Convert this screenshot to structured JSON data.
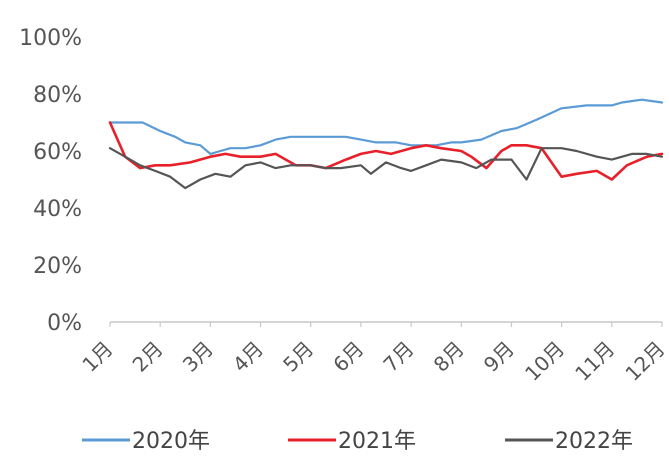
{
  "chart_data": {
    "type": "line",
    "title": "",
    "xlabel": "",
    "ylabel": "",
    "ylim": [
      0,
      100
    ],
    "y_ticks": [
      "0%",
      "20%",
      "40%",
      "60%",
      "80%",
      "100%"
    ],
    "x_ticks": [
      "1月",
      "2月",
      "3月",
      "4月",
      "5月",
      "6月",
      "7月",
      "8月",
      "9月",
      "10月",
      "11月",
      "12月"
    ],
    "x_range": [
      0,
      11
    ],
    "grid": false,
    "legend_position": "bottom",
    "series": [
      {
        "name": "2020年",
        "color": "#5b9bd5",
        "x": [
          0,
          0.45,
          0.65,
          1,
          1.3,
          1.5,
          1.8,
          2.0,
          2.2,
          2.4,
          2.7,
          3.0,
          3.3,
          3.6,
          4.0,
          4.3,
          4.7,
          5.0,
          5.3,
          5.7,
          6.0,
          6.2,
          6.5,
          6.8,
          7.0,
          7.4,
          7.8,
          8.1,
          8.5,
          9.0,
          9.5,
          10.0,
          10.2,
          10.6,
          11.0
        ],
        "values": [
          70,
          70,
          70,
          67,
          65,
          63,
          62,
          59,
          60,
          61,
          61,
          62,
          64,
          65,
          65,
          65,
          65,
          64,
          63,
          63,
          62,
          62,
          62,
          63,
          63,
          64,
          67,
          68,
          71,
          75,
          76,
          76,
          77,
          78,
          77
        ]
      },
      {
        "name": "2021年",
        "color": "#e8202a",
        "x": [
          0,
          0.3,
          0.6,
          0.9,
          1.2,
          1.6,
          2.0,
          2.3,
          2.6,
          3.0,
          3.3,
          3.7,
          4.0,
          4.3,
          4.7,
          5.0,
          5.3,
          5.6,
          6.0,
          6.3,
          6.6,
          7.0,
          7.2,
          7.5,
          7.8,
          8.0,
          8.3,
          8.6,
          9.0,
          9.3,
          9.7,
          10.0,
          10.3,
          10.7,
          11.0
        ],
        "values": [
          70,
          58,
          54,
          55,
          55,
          56,
          58,
          59,
          58,
          58,
          59,
          55,
          55,
          54,
          57,
          59,
          60,
          59,
          61,
          62,
          61,
          60,
          58,
          54,
          60,
          62,
          62,
          61,
          51,
          52,
          53,
          50,
          55,
          58,
          59
        ]
      },
      {
        "name": "2022年",
        "color": "#555555",
        "x": [
          0,
          0.3,
          0.6,
          0.9,
          1.2,
          1.5,
          1.8,
          2.1,
          2.4,
          2.7,
          3.0,
          3.3,
          3.6,
          4.0,
          4.3,
          4.6,
          5.0,
          5.2,
          5.5,
          5.8,
          6.0,
          6.3,
          6.6,
          7.0,
          7.3,
          7.6,
          8.0,
          8.3,
          8.6,
          9.0,
          9.3,
          9.7,
          10.0,
          10.4,
          10.7,
          11.0
        ],
        "values": [
          61,
          58,
          55,
          53,
          51,
          47,
          50,
          52,
          51,
          55,
          56,
          54,
          55,
          55,
          54,
          54,
          55,
          52,
          56,
          54,
          53,
          55,
          57,
          56,
          54,
          57,
          57,
          50,
          61,
          61,
          60,
          58,
          57,
          59,
          59,
          58
        ]
      }
    ]
  }
}
